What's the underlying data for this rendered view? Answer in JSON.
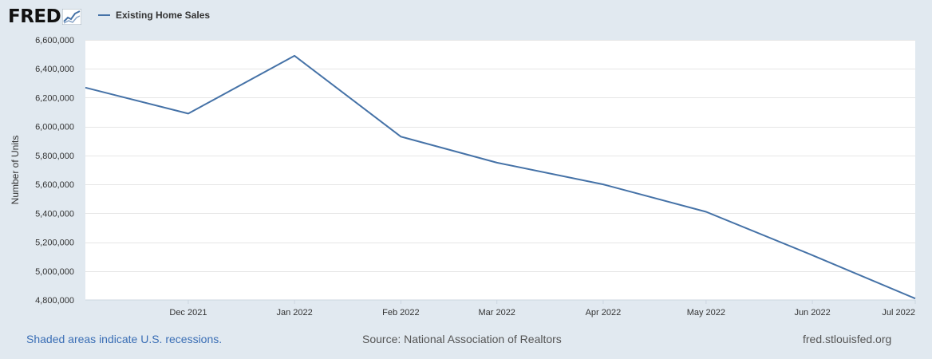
{
  "brand": {
    "logo_text": "FRED",
    "logo_icon": "fred-chart-icon"
  },
  "legend": {
    "series_label": "Existing Home Sales",
    "color": "#4572a7"
  },
  "chart_data": {
    "type": "line",
    "ylabel": "Number of Units",
    "xlabel": "",
    "ylim": [
      4800000,
      6600000
    ],
    "y_ticks": [
      4800000,
      5000000,
      5200000,
      5400000,
      5600000,
      5800000,
      6000000,
      6200000,
      6400000,
      6600000
    ],
    "y_tick_labels": [
      "4,800,000",
      "5,000,000",
      "5,200,000",
      "5,400,000",
      "5,600,000",
      "5,800,000",
      "6,000,000",
      "6,200,000",
      "6,400,000",
      "6,600,000"
    ],
    "xlim": [
      "2021-11-01",
      "2022-07-01"
    ],
    "x_ticks": [
      "2021-12-01",
      "2022-01-01",
      "2022-02-01",
      "2022-03-01",
      "2022-04-01",
      "2022-05-01",
      "2022-06-01",
      "2022-07-01"
    ],
    "x_tick_labels": [
      "Dec 2021",
      "Jan 2022",
      "Feb 2022",
      "Mar 2022",
      "Apr 2022",
      "May 2022",
      "Jun 2022",
      "Jul 2022"
    ],
    "grid": true,
    "series": [
      {
        "name": "Existing Home Sales",
        "color": "#4572a7",
        "x": [
          "2021-11-01",
          "2021-12-01",
          "2022-01-01",
          "2022-02-01",
          "2022-03-01",
          "2022-04-01",
          "2022-05-01",
          "2022-06-01",
          "2022-07-01"
        ],
        "y": [
          6270000,
          6090000,
          6490000,
          5930000,
          5750000,
          5600000,
          5410000,
          5110000,
          4810000
        ]
      }
    ]
  },
  "footer": {
    "recession_note": "Shaded areas indicate U.S. recessions.",
    "source": "Source: National Association of Realtors",
    "url": "fred.stlouisfed.org"
  }
}
